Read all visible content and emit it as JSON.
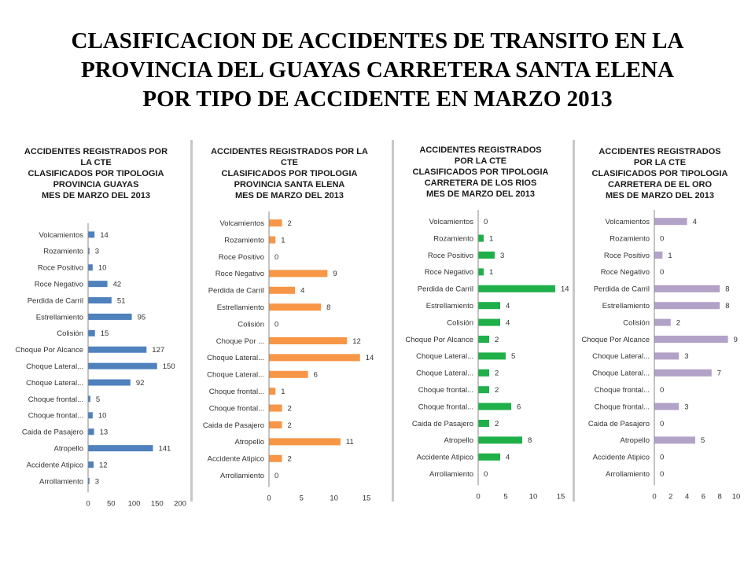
{
  "page": {
    "title_lines": [
      "CLASIFICACION DE ACCIDENTES DE TRANSITO EN LA",
      "PROVINCIA DEL GUAYAS CARRETERA SANTA ELENA",
      "POR TIPO DE ACCIDENTE EN MARZO 2013"
    ]
  },
  "chart_data": [
    {
      "type": "bar",
      "orientation": "horizontal",
      "title_lines": [
        "ACCIDENTES REGISTRADOS POR",
        "LA CTE",
        "CLASIFICADOS POR TIPOLOGIA",
        "PROVINCIA GUAYAS",
        "MES DE MARZO DEL 2013"
      ],
      "categories": [
        "Volcamientos",
        "Rozamiento",
        "Roce Positivo",
        "Roce Negativo",
        "Perdida de Carril",
        "Estrellamiento",
        "Colisión",
        "Choque Por Alcance",
        "Choque Lateral...",
        "Choque Lateral...",
        "Choque frontal...",
        "Choque frontal...",
        "Caida de Pasajero",
        "Atropello",
        "Accidente Atipico",
        "Arrollamiento"
      ],
      "values": [
        14,
        3,
        10,
        42,
        51,
        95,
        15,
        127,
        150,
        92,
        5,
        10,
        13,
        141,
        12,
        3
      ],
      "xlim": [
        0,
        200
      ],
      "ticks": [
        0,
        50,
        100,
        150,
        200
      ],
      "color": "#4f81bd",
      "data_labels": true,
      "grid": false
    },
    {
      "type": "bar",
      "orientation": "horizontal",
      "title_lines": [
        "ACCIDENTES REGISTRADOS POR LA",
        "CTE",
        "CLASIFICADOS POR TIPOLOGIA",
        "PROVINCIA SANTA ELENA",
        "MES DE MARZO DEL 2013"
      ],
      "categories": [
        "Volcamientos",
        "Rozamiento",
        "Roce Positivo",
        "Roce Negativo",
        "Perdida de Carril",
        "Estrellamiento",
        "Colisión",
        "Choque Por ...",
        "Choque Lateral...",
        "Choque Lateral...",
        "Choque frontal...",
        "Choque frontal...",
        "Caida de Pasajero",
        "Atropello",
        "Accidente Atipico",
        "Arrollamiento"
      ],
      "values": [
        2,
        1,
        0,
        9,
        4,
        8,
        0,
        12,
        14,
        6,
        1,
        2,
        2,
        11,
        2,
        0
      ],
      "xlim": [
        0,
        15
      ],
      "ticks": [
        0,
        5,
        10,
        15
      ],
      "color": "#f79646",
      "data_labels": true,
      "grid": false
    },
    {
      "type": "bar",
      "orientation": "horizontal",
      "title_lines": [
        "ACCIDENTES REGISTRADOS",
        "POR LA CTE",
        "CLASIFICADOS POR TIPOLOGIA",
        "CARRETERA DE LOS RIOS",
        "MES DE MARZO DEL 2013"
      ],
      "categories": [
        "Volcamientos",
        "Rozamiento",
        "Roce Positivo",
        "Roce Negativo",
        "Perdida de Carril",
        "Estrellamiento",
        "Colisión",
        "Choque Por Alcance",
        "Choque Lateral...",
        "Choque Lateral...",
        "Choque frontal...",
        "Choque frontal...",
        "Caida de Pasajero",
        "Atropello",
        "Accidente Atipico",
        "Arrollamiento"
      ],
      "values": [
        0,
        1,
        3,
        1,
        14,
        4,
        4,
        2,
        5,
        2,
        2,
        6,
        2,
        8,
        4,
        0
      ],
      "xlim": [
        0,
        15
      ],
      "ticks": [
        0,
        5,
        10,
        15
      ],
      "color": "#1fb04a",
      "data_labels": true,
      "grid": false
    },
    {
      "type": "bar",
      "orientation": "horizontal",
      "title_lines": [
        "ACCIDENTES REGISTRADOS",
        "POR LA CTE",
        "CLASIFICADOS POR TIPOLOGIA",
        "CARRETERA DE EL ORO",
        "MES DE MARZO DEL 2013"
      ],
      "categories": [
        "Volcamientos",
        "Rozamiento",
        "Roce Positivo",
        "Roce Negativo",
        "Perdida de Carril",
        "Estrellamiento",
        "Colisión",
        "Choque Por Alcance",
        "Choque Lateral...",
        "Choque Lateral...",
        "Choque frontal...",
        "Choque frontal...",
        "Caida de Pasajero",
        "Atropello",
        "Accidente Atipico",
        "Arrollamiento"
      ],
      "values": [
        4,
        0,
        1,
        0,
        8,
        8,
        2,
        9,
        3,
        7,
        0,
        3,
        0,
        5,
        0,
        0
      ],
      "xlim": [
        0,
        10
      ],
      "ticks": [
        0,
        2,
        4,
        6,
        8,
        10
      ],
      "color": "#b3a2c7",
      "data_labels": true,
      "grid": false
    }
  ]
}
